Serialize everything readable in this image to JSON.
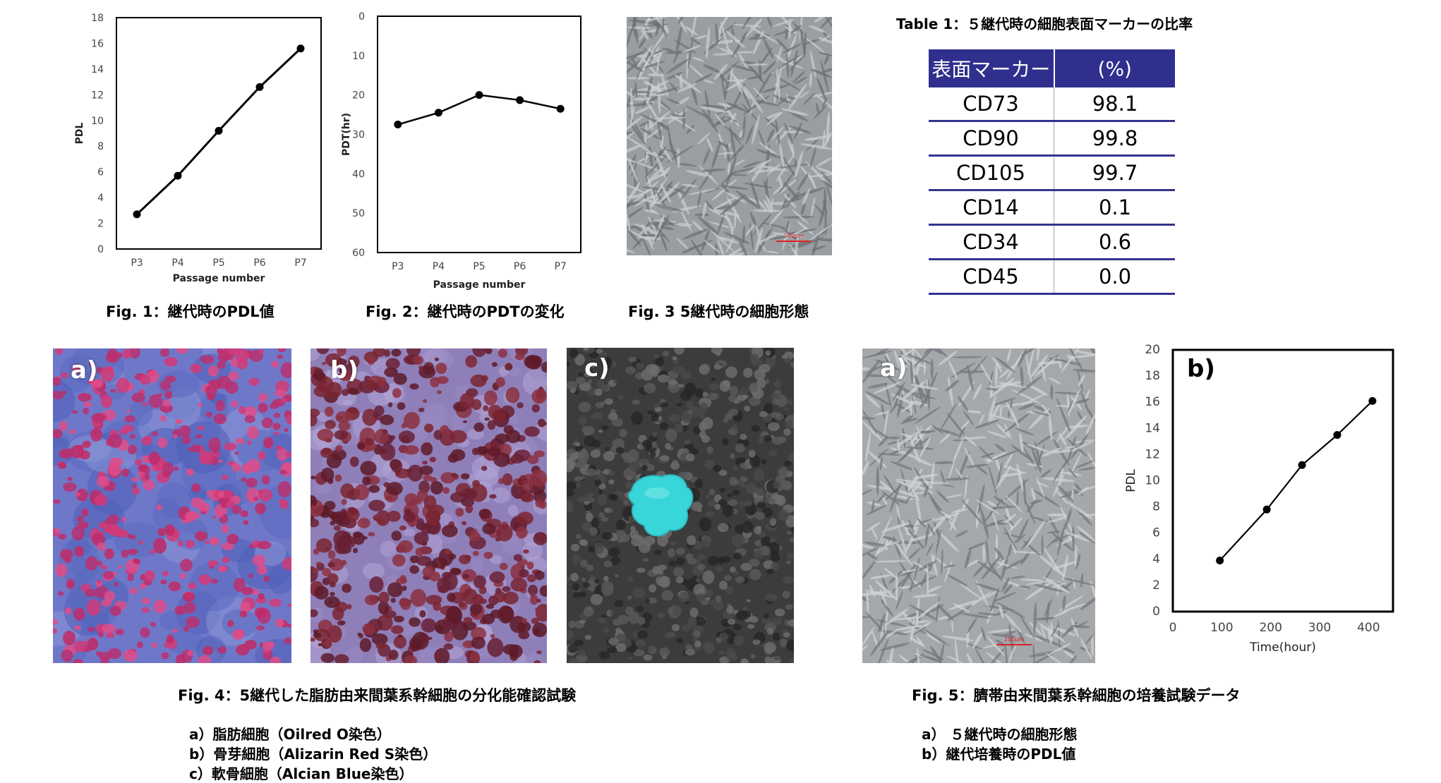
{
  "fig1": {
    "caption": "Fig. 1：継代時のPDL値",
    "chart_data": {
      "type": "line",
      "categories": [
        "P3",
        "P4",
        "P5",
        "P6",
        "P7"
      ],
      "values": [
        2.7,
        5.7,
        9.2,
        12.6,
        15.6
      ],
      "xlabel": "Passage number",
      "ylabel": "PDL",
      "ylim": [
        0,
        18
      ],
      "yticks": [
        "0",
        "2",
        "4",
        "6",
        "8",
        "10",
        "12",
        "14",
        "16",
        "18"
      ]
    }
  },
  "fig2": {
    "caption": "Fig. 2：継代時のPDTの変化",
    "chart_data": {
      "type": "line",
      "categories": [
        "P3",
        "P4",
        "P5",
        "P6",
        "P7"
      ],
      "values": [
        27.5,
        24.5,
        20.0,
        21.3,
        23.5
      ],
      "xlabel": "Passage number",
      "ylabel": "PDT(hr)",
      "ylim": [
        0,
        60
      ],
      "y_inverted": true,
      "yticks": [
        "0",
        "10",
        "20",
        "30",
        "40",
        "50",
        "60"
      ]
    }
  },
  "fig3": {
    "caption": "Fig. 3  5継代時の細胞形態",
    "scalebar": "200μm"
  },
  "table1": {
    "title": "Table 1：５継代時の細胞表面マーカーの比率",
    "headers": [
      "表面マーカー",
      "(%)"
    ],
    "rows": [
      [
        "CD73",
        "98.1"
      ],
      [
        "CD90",
        "99.8"
      ],
      [
        "CD105",
        "99.7"
      ],
      [
        "CD14",
        "0.1"
      ],
      [
        "CD34",
        "0.6"
      ],
      [
        "CD45",
        "0.0"
      ]
    ]
  },
  "fig4": {
    "labels": [
      "a)",
      "b)",
      "c)"
    ],
    "caption": "Fig. 4：5継代した脂肪由来間葉系幹細胞の分化能確認試験",
    "items": [
      "a）脂肪細胞（Oilred O染色）",
      "b）骨芽細胞（Alizarin Red S染色）",
      "c）軟骨細胞（Alcian Blue染色）"
    ]
  },
  "fig5": {
    "labels": [
      "a)",
      "b)"
    ],
    "caption": "Fig. 5：臍帯由来間葉系幹細胞の培養試験データ",
    "items": [
      "a） ５継代時の細胞形態",
      "b）継代培養時のPDL値"
    ],
    "scalebar": "200μm",
    "chart_data": {
      "type": "line",
      "x": [
        96,
        192,
        264,
        336,
        408
      ],
      "values": [
        3.9,
        7.8,
        11.2,
        13.5,
        16.1
      ],
      "xlabel": "Time(hour)",
      "ylabel": "PDL",
      "xlim": [
        0,
        450
      ],
      "ylim": [
        0,
        20
      ],
      "xticks": [
        "0",
        "100",
        "200",
        "300",
        "400"
      ],
      "yticks": [
        "0",
        "2",
        "4",
        "6",
        "8",
        "10",
        "12",
        "14",
        "16",
        "18",
        "20"
      ]
    }
  },
  "colors": {
    "table_header": "#2f2f8e",
    "table_rule": "#33338f",
    "alcian_blue": "#38d6d8",
    "oilred": "#d23a78",
    "alizarin": "#7a2430"
  }
}
